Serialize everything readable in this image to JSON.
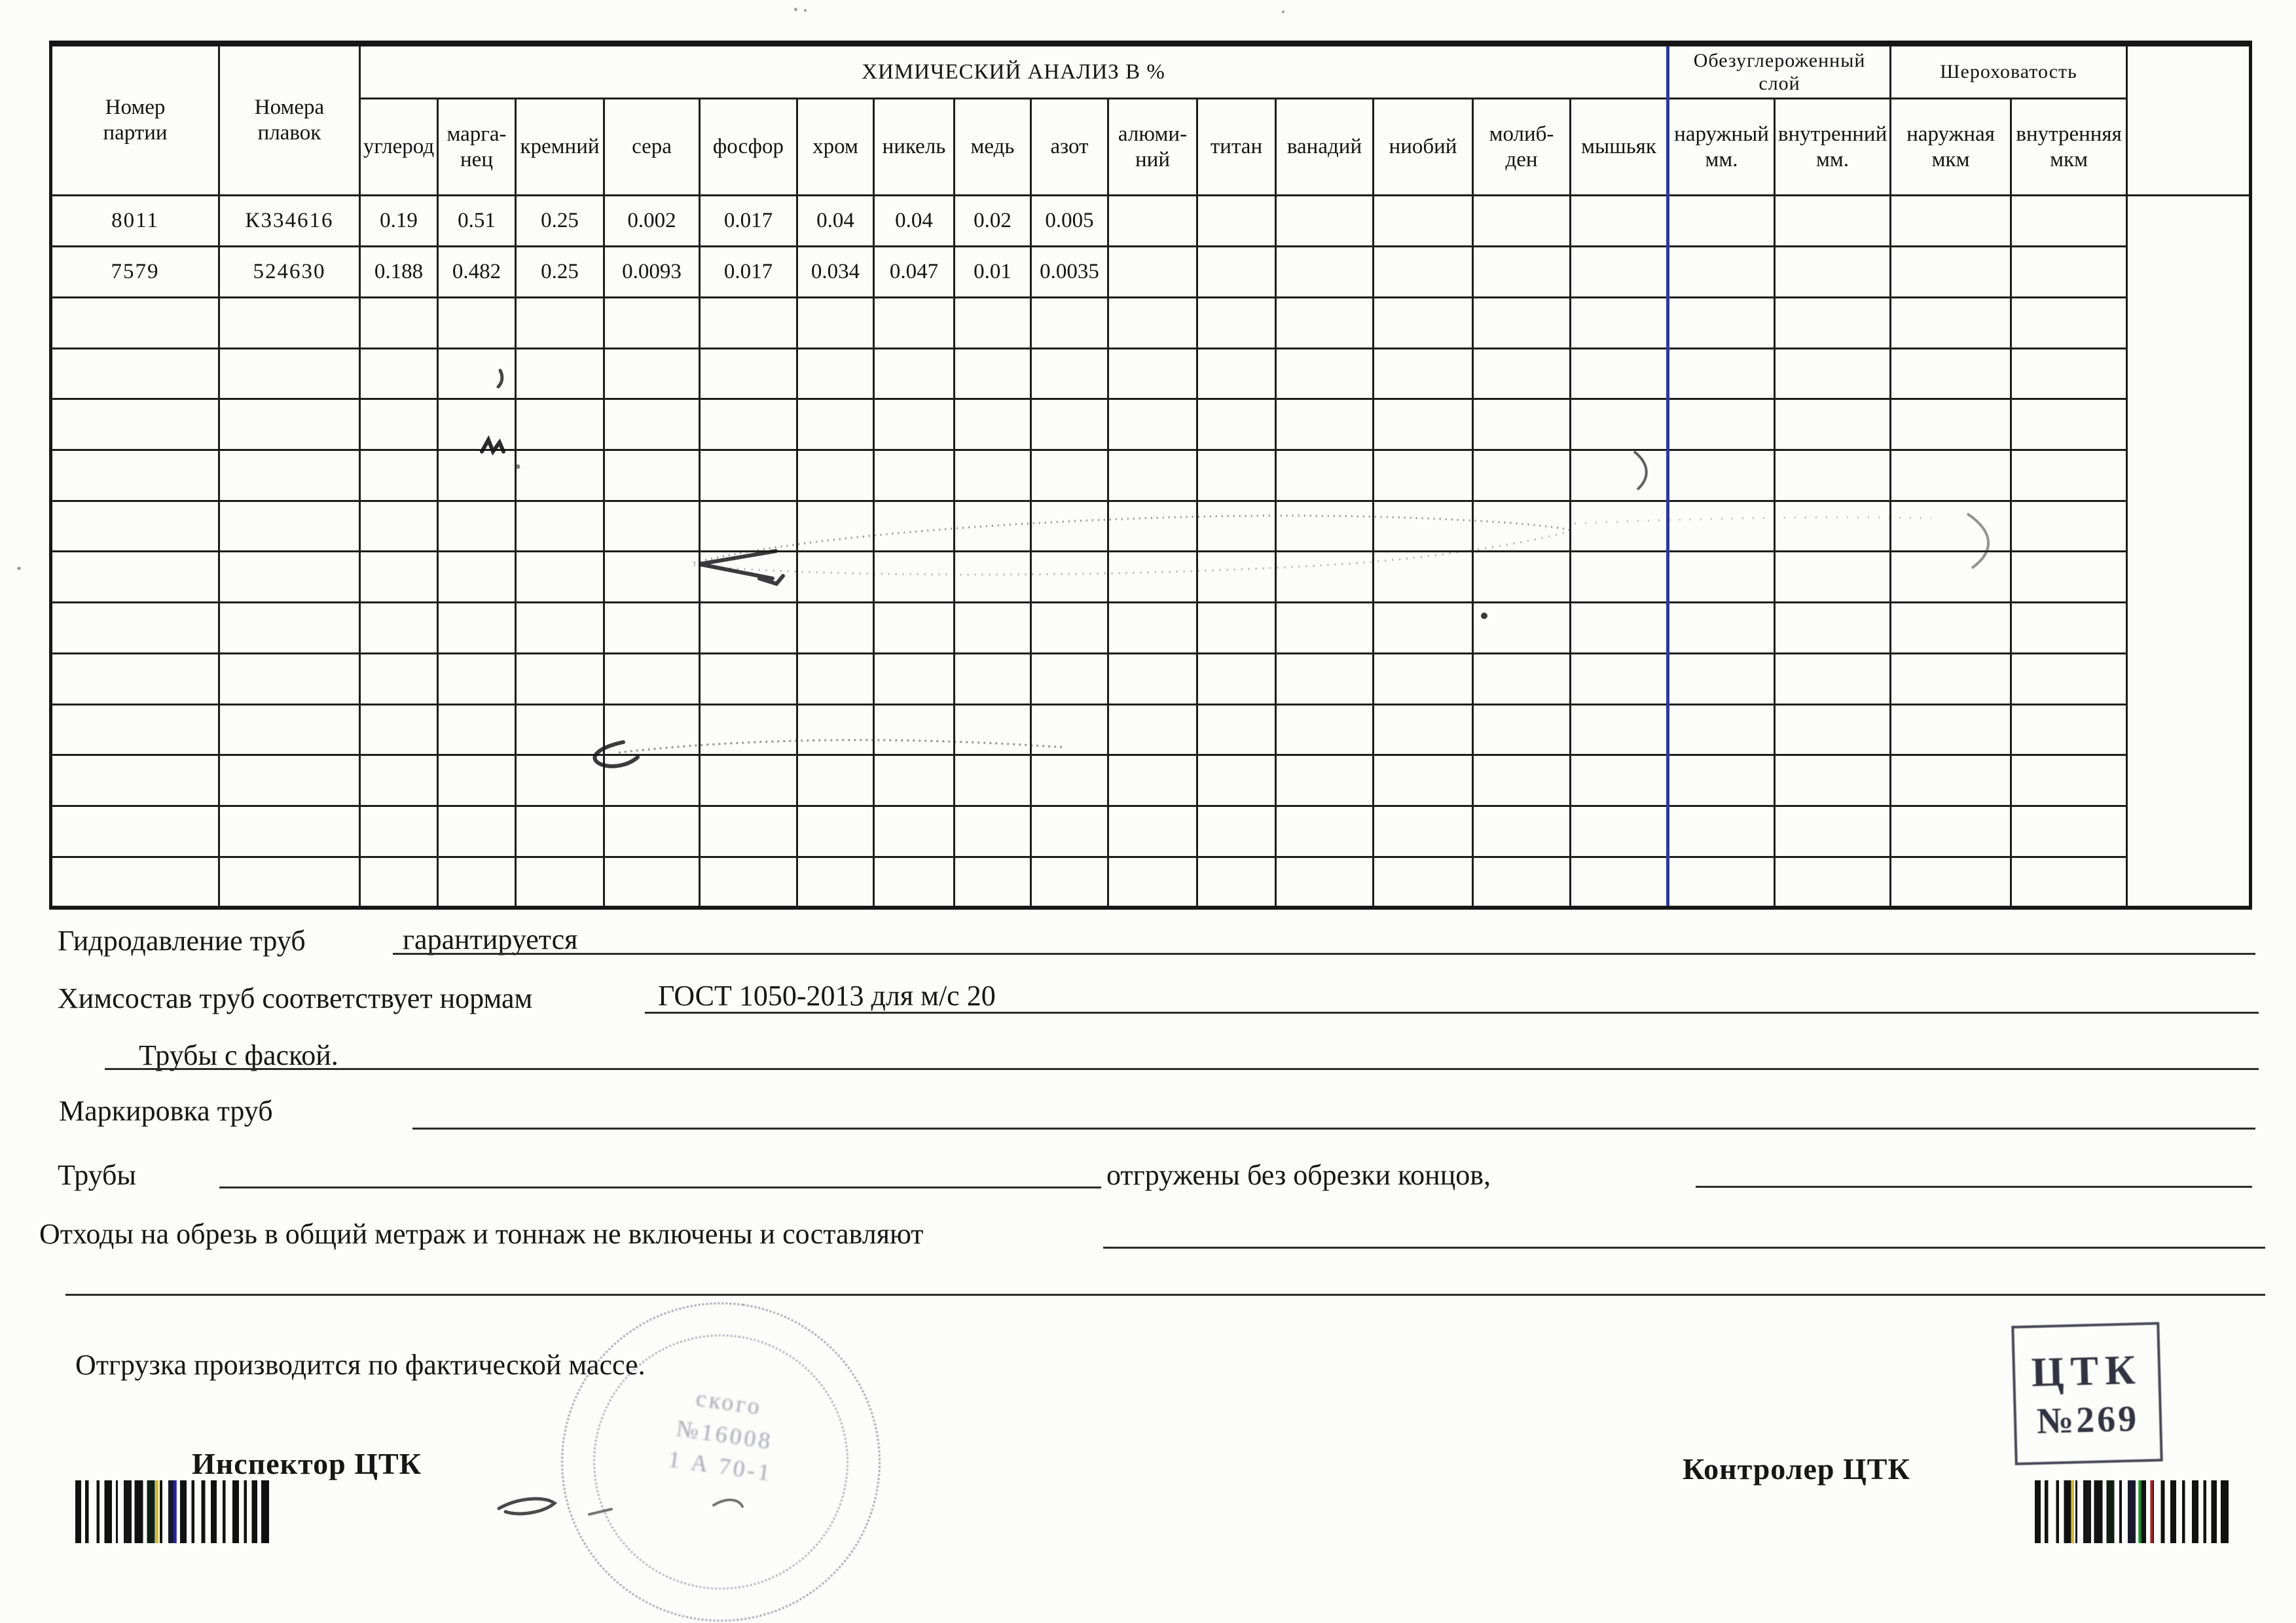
{
  "table": {
    "title": "ХИМИЧЕСКИЙ АНАЛИЗ  В   %",
    "head": {
      "party": "Номер\nпартии",
      "heats": "Номера\nплавок",
      "decarb_group": "Обезуглероженный\nслой",
      "rough_group": "Шероховатость",
      "decarb_outer": "наружный\nмм.",
      "decarb_inner": "внутренний\nмм.",
      "rough_outer": "наружная\nмкм",
      "rough_inner": "внутренняя\nмкм"
    },
    "chem_columns": [
      "углерод",
      "марга-\nнец",
      "кремний",
      "сера",
      "фосфор",
      "хром",
      "никель",
      "медь",
      "азот",
      "алюми-\nний",
      "титан",
      "ванадий",
      "ниобий",
      "молиб-\nден",
      "мышьяк"
    ],
    "rows": [
      {
        "party": "8011",
        "heats": "К334616",
        "values": [
          "0.19",
          "0.51",
          "0.25",
          "0.002",
          "0.017",
          "0.04",
          "0.04",
          "0.02",
          "0.005",
          "",
          "",
          "",
          "",
          "",
          ""
        ]
      },
      {
        "party": "7579",
        "heats": "524630",
        "values": [
          "0.188",
          "0.482",
          "0.25",
          "0.0093",
          "0.017",
          "0.034",
          "0.047",
          "0.01",
          "0.0035",
          "",
          "",
          "",
          "",
          "",
          ""
        ]
      }
    ],
    "empty_row_count": 12
  },
  "footer": {
    "hydro_label": "Гидродавление труб",
    "hydro_value": "гарантируется",
    "chem_label": "Химсостав труб соответствует нормам",
    "chem_value": "ГОСТ 1050-2013 для м/с 20",
    "chamfer": "Трубы с фаской.",
    "marking_label": "Маркировка труб",
    "pipes_label": "Трубы",
    "pipes_note": "отгружены без обрезки концов,",
    "waste_label": "Отходы на обрезь в общий метраж и тоннаж не включены и составляют",
    "shipping_note": "Отгрузка производится по фактической массе.",
    "inspector": "Инспектор ЦТК",
    "controller": "Контролер ЦТК"
  },
  "stamps": {
    "box": {
      "line1": "ЦТК",
      "line2": "№269"
    },
    "round": {
      "fragments": [
        "ского",
        "№16008",
        "1 А 70-1"
      ]
    }
  },
  "colors": {
    "accent_blue": "#2c3a96",
    "ink": "#1c1c1c"
  }
}
